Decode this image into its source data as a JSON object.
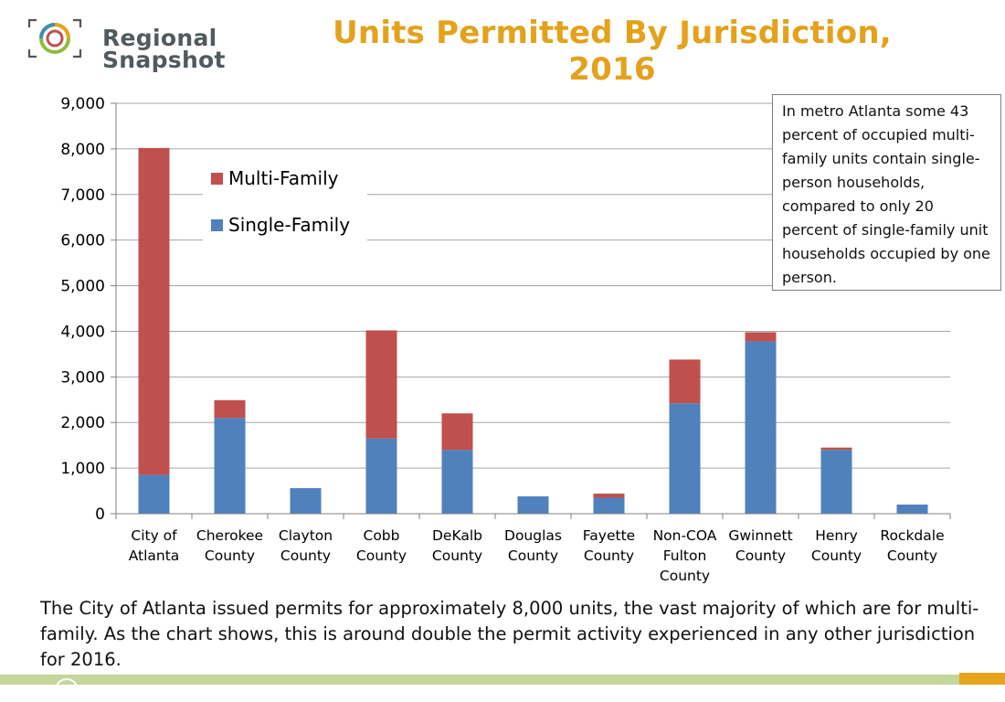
{
  "header": {
    "logo_line1": "Regional",
    "logo_line2": "Snapshot",
    "title": "Units Permitted By Jurisdiction, 2016"
  },
  "callout": {
    "text": "In metro Atlanta some 43 percent of occupied multi-family units contain single-person households, compared to only 20 percent of single-family unit households occupied by one person."
  },
  "caption": {
    "text": "The City of Atlanta issued permits for approximately  8,000 units, the vast majority of which are for multi-family. As the chart shows, this is around double the permit activity experienced in any other jurisdiction for 2016."
  },
  "colors": {
    "title": "#e4a11b",
    "multi_family": "#c0504d",
    "single_family": "#4f81bd",
    "footer_band": "#c5d69b",
    "footer_accent": "#e8a31c"
  },
  "chart_data": {
    "type": "bar",
    "stacked": true,
    "title": "Units Permitted By Jurisdiction, 2016",
    "categories": [
      [
        "City of",
        "Atlanta"
      ],
      [
        "Cherokee",
        "County"
      ],
      [
        "Clayton",
        "County"
      ],
      [
        "Cobb",
        "County"
      ],
      [
        "DeKalb",
        "County"
      ],
      [
        "Douglas",
        "County"
      ],
      [
        "Fayette",
        "County"
      ],
      [
        "Non-COA",
        "Fulton",
        "County"
      ],
      [
        "Gwinnett",
        "County"
      ],
      [
        "Henry",
        "County"
      ],
      [
        "Rockdale",
        "County"
      ]
    ],
    "series": [
      {
        "name": "Single-Family",
        "color": "#4f81bd",
        "values": [
          850,
          2100,
          560,
          1650,
          1400,
          380,
          350,
          2420,
          3780,
          1400,
          200
        ]
      },
      {
        "name": "Multi-Family",
        "color": "#c0504d",
        "values": [
          7170,
          390,
          0,
          2370,
          800,
          0,
          90,
          960,
          200,
          50,
          0
        ]
      }
    ],
    "legend_order": [
      "Multi-Family",
      "Single-Family"
    ],
    "legend_position": "top-left",
    "ylim": [
      0,
      9000
    ],
    "yticks": [
      0,
      1000,
      2000,
      3000,
      4000,
      5000,
      6000,
      7000,
      8000,
      9000
    ],
    "ytick_labels": [
      "0",
      "1,000",
      "2,000",
      "3,000",
      "4,000",
      "5,000",
      "6,000",
      "7,000",
      "8,000",
      "9,000"
    ],
    "grid": true,
    "xlabel": "",
    "ylabel": ""
  }
}
